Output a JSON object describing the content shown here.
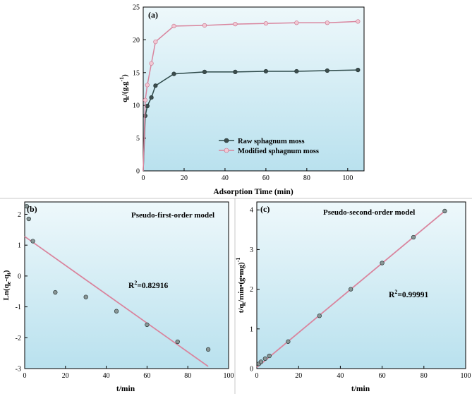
{
  "colors": {
    "plot_bg_top": "#eef8fb",
    "plot_bg_bottom": "#b9e1ee",
    "raw": "#2e4a4a",
    "modified": "#d9859e",
    "fit_line": "#d9859e",
    "marker_dark": "#3c4d4d",
    "frame": "#000000",
    "divider": "#c8c8c8"
  },
  "chart_data": [
    {
      "panel": "(a)",
      "type": "line",
      "xlabel": "Adsorption Time (min)",
      "ylabel": "q",
      "ylabel_sub": "t",
      "ylabel_rest": "/(g.g",
      "ylabel_sup": "-1",
      "ylabel_close": ")",
      "xlim": [
        0,
        108
      ],
      "ylim": [
        0,
        25
      ],
      "xticks": [
        0,
        20,
        40,
        60,
        80,
        100
      ],
      "yticks": [
        0,
        5,
        10,
        15,
        20,
        25
      ],
      "grid": false,
      "legend_position": "bottom-right",
      "series": [
        {
          "name": "Raw sphagnum moss",
          "color_key": "raw",
          "marker": "circle-dark",
          "x": [
            0,
            1,
            2,
            4,
            6,
            15,
            30,
            45,
            60,
            75,
            90,
            105
          ],
          "y": [
            0,
            8.4,
            9.9,
            11.2,
            13.0,
            14.8,
            15.1,
            15.1,
            15.2,
            15.2,
            15.3,
            15.4
          ]
        },
        {
          "name": "Modified sphagnum moss",
          "color_key": "modified",
          "marker": "circle-pink",
          "x": [
            0,
            1,
            2,
            4,
            6,
            15,
            30,
            45,
            60,
            75,
            90,
            105
          ],
          "y": [
            0,
            10.8,
            13.1,
            16.4,
            19.7,
            22.1,
            22.2,
            22.4,
            22.5,
            22.6,
            22.6,
            22.8
          ]
        }
      ]
    },
    {
      "panel": "(b)",
      "type": "scatter",
      "title": "Pseudo-first-order model",
      "xlabel": "t/min",
      "ylabel": "Ln(q",
      "ylabel_sub1": "e",
      "ylabel_mid": "-q",
      "ylabel_sub2": "t",
      "ylabel_close": ")",
      "xlim": [
        0,
        100
      ],
      "ylim": [
        -3,
        2.4
      ],
      "xticks": [
        0,
        20,
        40,
        60,
        80,
        100
      ],
      "yticks": [
        -3,
        -2,
        -1,
        0,
        1,
        2
      ],
      "grid": false,
      "annotation": "R",
      "annotation_sup": "2",
      "annotation_rest": "=0.82916",
      "points": {
        "x": [
          1,
          2,
          4,
          15,
          30,
          45,
          60,
          75,
          90
        ],
        "y": [
          2.26,
          1.85,
          1.13,
          -0.53,
          -0.68,
          -1.14,
          -1.58,
          -2.13,
          -2.38
        ]
      },
      "fit_line": {
        "x": [
          0,
          90
        ],
        "y": [
          1.28,
          -2.93
        ]
      }
    },
    {
      "panel": "(c)",
      "type": "scatter",
      "title": "Pseudo-second-order model",
      "xlabel": "t/min",
      "ylabel": "t/q",
      "ylabel_sub": "t",
      "ylabel_rest": "/min•(g•mg)",
      "ylabel_sup": "-1",
      "xlim": [
        0,
        100
      ],
      "ylim": [
        0,
        4.2
      ],
      "xticks": [
        0,
        20,
        40,
        60,
        80,
        100
      ],
      "yticks": [
        0,
        1,
        2,
        3,
        4
      ],
      "grid": false,
      "annotation": "R",
      "annotation_sup": "2",
      "annotation_rest": "=0.99991",
      "points": {
        "x": [
          1,
          2,
          4,
          6,
          15,
          30,
          45,
          60,
          75,
          90
        ],
        "y": [
          0.12,
          0.17,
          0.25,
          0.32,
          0.68,
          1.33,
          2.0,
          2.66,
          3.31,
          3.97
        ]
      },
      "fit_line": {
        "x": [
          0,
          90
        ],
        "y": [
          0.03,
          3.97
        ]
      }
    }
  ]
}
